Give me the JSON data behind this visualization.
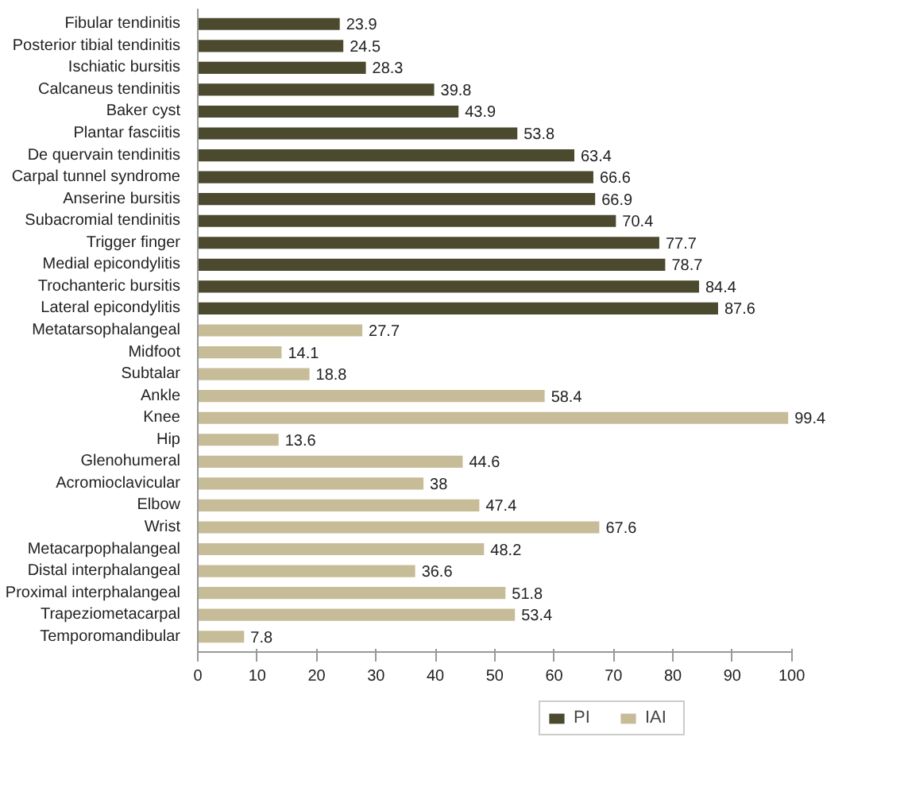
{
  "chart_data": {
    "type": "bar",
    "orientation": "horizontal",
    "categories": [
      "Fibular tendinitis",
      "Posterior tibial tendinitis",
      "Ischiatic bursitis",
      "Calcaneus tendinitis",
      "Baker cyst",
      "Plantar fasciitis",
      "De quervain tendinitis",
      "Carpal tunnel syndrome",
      "Anserine bursitis",
      "Subacromial tendinitis",
      "Trigger finger",
      "Medial epicondylitis",
      "Trochanteric bursitis",
      "Lateral epicondylitis",
      "Metatarsophalangeal",
      "Midfoot",
      "Subtalar",
      "Ankle",
      "Knee",
      "Hip",
      "Glenohumeral",
      "Acromioclavicular",
      "Elbow",
      "Wrist",
      "Metacarpophalangeal",
      "Distal interphalangeal",
      "Proximal interphalangeal",
      "Trapeziometacarpal",
      "Temporomandibular"
    ],
    "series": [
      {
        "name": "PI",
        "color": "#4b4a2e",
        "values": [
          23.9,
          24.5,
          28.3,
          39.8,
          43.9,
          53.8,
          63.4,
          66.6,
          66.9,
          70.4,
          77.7,
          78.7,
          84.4,
          87.6,
          null,
          null,
          null,
          null,
          null,
          null,
          null,
          null,
          null,
          null,
          null,
          null,
          null,
          null,
          null
        ]
      },
      {
        "name": "IAI",
        "color": "#c7bc98",
        "values": [
          null,
          null,
          null,
          null,
          null,
          null,
          null,
          null,
          null,
          null,
          null,
          null,
          null,
          null,
          27.7,
          14.1,
          18.8,
          58.4,
          99.4,
          13.6,
          44.6,
          38,
          47.4,
          67.6,
          48.2,
          36.6,
          51.8,
          53.4,
          7.8
        ]
      }
    ],
    "xlim": [
      0,
      100
    ],
    "xticks": [
      0,
      10,
      20,
      30,
      40,
      50,
      60,
      70,
      80,
      90,
      100
    ],
    "data_labels": true,
    "grid": false,
    "legend": "bottom"
  }
}
